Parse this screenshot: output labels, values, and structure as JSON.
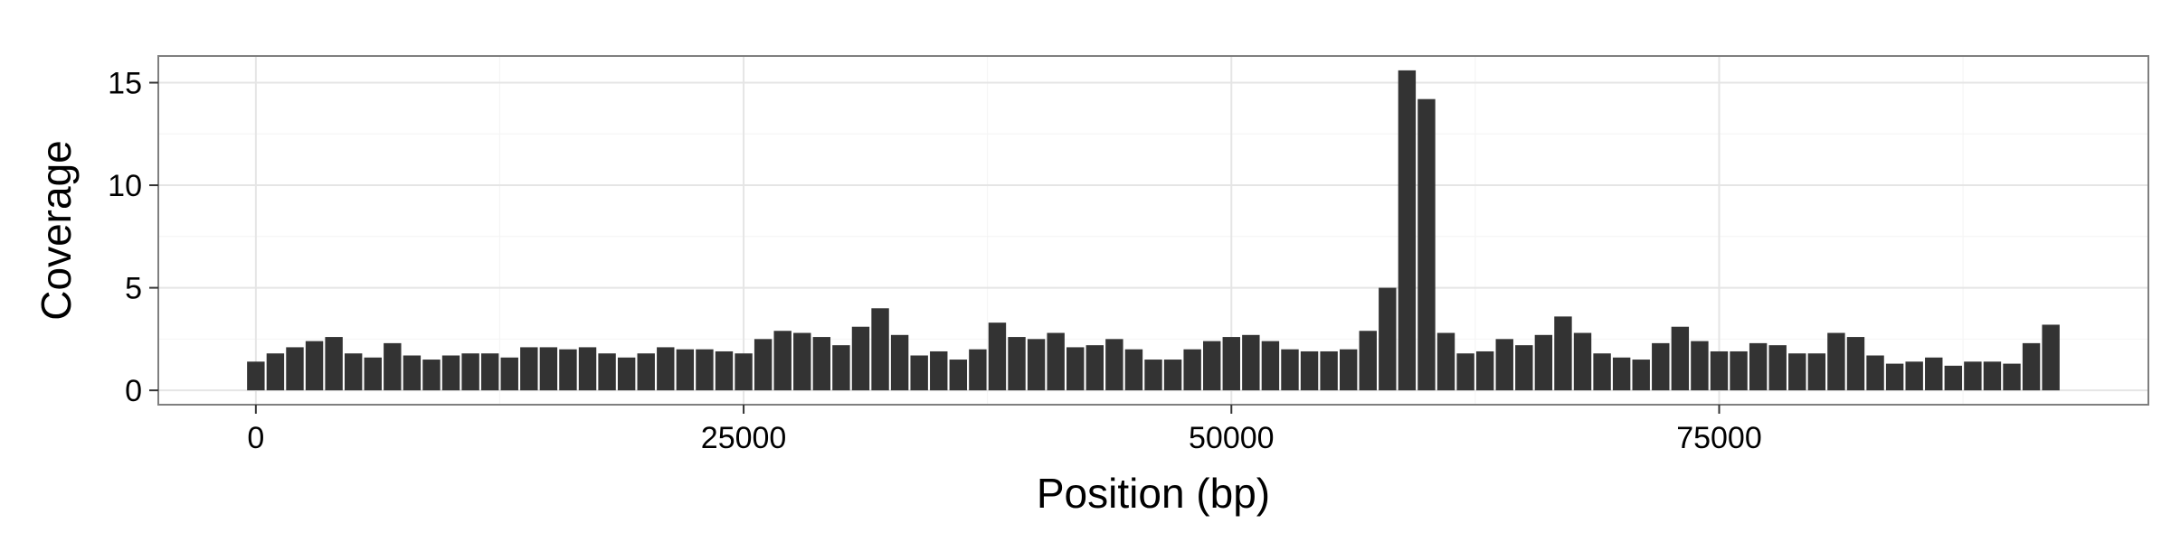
{
  "chart_data": {
    "type": "bar",
    "title": "",
    "xlabel": "Position (bp)",
    "ylabel": "Coverage",
    "xlim": [
      -5000,
      97000
    ],
    "ylim": [
      -0.7,
      16.3
    ],
    "xticks": [
      0,
      25000,
      50000,
      75000
    ],
    "xtick_labels": [
      "0",
      "25000",
      "50000",
      "75000"
    ],
    "yticks": [
      0,
      5,
      10,
      15
    ],
    "ytick_labels": [
      "0",
      "5",
      "10",
      "15"
    ],
    "grid": true,
    "bar_width": 900,
    "bar_color": "#333333",
    "x": [
      0,
      1000,
      2000,
      3000,
      4000,
      5000,
      6000,
      7000,
      8000,
      9000,
      10000,
      11000,
      12000,
      13000,
      14000,
      15000,
      16000,
      17000,
      18000,
      19000,
      20000,
      21000,
      22000,
      23000,
      24000,
      25000,
      26000,
      27000,
      28000,
      29000,
      30000,
      31000,
      32000,
      33000,
      34000,
      35000,
      36000,
      37000,
      38000,
      39000,
      40000,
      41000,
      42000,
      43000,
      44000,
      45000,
      46000,
      47000,
      48000,
      49000,
      50000,
      51000,
      52000,
      53000,
      54000,
      55000,
      56000,
      57000,
      58000,
      59000,
      60000,
      61000,
      62000,
      63000,
      64000,
      65000,
      66000,
      67000,
      68000,
      69000,
      70000,
      71000,
      72000,
      73000,
      74000,
      75000,
      76000,
      77000,
      78000,
      79000,
      80000,
      81000,
      82000,
      83000,
      84000,
      85000,
      86000,
      87000,
      88000,
      89000,
      90000,
      91000,
      92000
    ],
    "values": [
      1.4,
      1.8,
      2.1,
      2.4,
      2.6,
      1.8,
      1.6,
      2.3,
      1.7,
      1.5,
      1.7,
      1.8,
      1.8,
      1.6,
      2.1,
      2.1,
      2.0,
      2.1,
      1.8,
      1.6,
      1.8,
      2.1,
      2.0,
      2.0,
      1.9,
      1.8,
      2.5,
      2.9,
      2.8,
      2.6,
      2.2,
      3.1,
      4.0,
      2.7,
      1.7,
      1.9,
      1.5,
      2.0,
      3.3,
      2.6,
      2.5,
      2.8,
      2.1,
      2.2,
      2.5,
      2.0,
      1.5,
      1.5,
      2.0,
      2.4,
      2.6,
      2.7,
      2.4,
      2.0,
      1.9,
      1.9,
      2.0,
      2.9,
      5.0,
      15.6,
      14.2,
      2.8,
      1.8,
      1.9,
      2.5,
      2.2,
      2.7,
      3.6,
      2.8,
      1.8,
      1.6,
      1.5,
      2.3,
      3.1,
      2.4,
      1.9,
      1.9,
      2.3,
      2.2,
      1.8,
      1.8,
      2.8,
      2.6,
      1.7,
      1.3,
      1.4,
      1.6,
      1.2,
      1.4,
      1.4,
      1.3,
      2.3,
      3.2
    ]
  }
}
